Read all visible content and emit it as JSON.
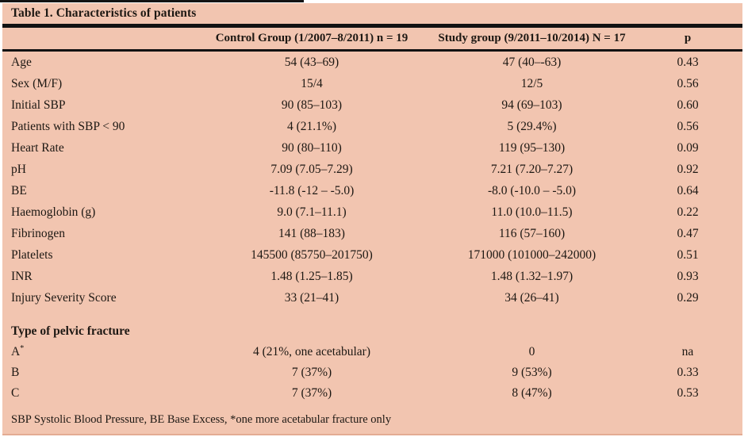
{
  "colors": {
    "table_background": "#f2c5b0",
    "rule": "#121212",
    "text": "#1d1813",
    "page_background": "#ffffff"
  },
  "table": {
    "title": "Table 1. Characteristics of patients",
    "header": {
      "label": "",
      "control": "Control Group (1/2007–8/2011) n = 19",
      "study": "Study group (9/2011–10/2014) N = 17",
      "p": "p"
    },
    "rows": [
      {
        "label": "Age",
        "control": "54 (43–69)",
        "study": "47 (40–-63)",
        "p": "0.43"
      },
      {
        "label": "Sex (M/F)",
        "control": "15/4",
        "study": "12/5",
        "p": "0.56"
      },
      {
        "label": "Initial SBP",
        "control": "90 (85–103)",
        "study": "94 (69–103)",
        "p": "0.60"
      },
      {
        "label": "Patients with SBP < 90",
        "control": "4 (21.1%)",
        "study": "5 (29.4%)",
        "p": "0.56"
      },
      {
        "label": "Heart Rate",
        "control": "90 (80–110)",
        "study": "119 (95–130)",
        "p": "0.09"
      },
      {
        "label": "pH",
        "control": "7.09 (7.05–7.29)",
        "study": "7.21 (7.20–7.27)",
        "p": "0.92"
      },
      {
        "label": "BE",
        "control": "-11.8 (-12 – -5.0)",
        "study": "-8.0 (-10.0 – -5.0)",
        "p": "0.64"
      },
      {
        "label": "Haemoglobin (g)",
        "control": "9.0 (7.1–11.1)",
        "study": "11.0 (10.0–11.5)",
        "p": "0.22"
      },
      {
        "label": "Fibrinogen",
        "control": "141 (88–183)",
        "study": "116 (57–160)",
        "p": "0.47"
      },
      {
        "label": "Platelets",
        "control": "145500 (85750–201750)",
        "study": "171000 (101000–242000)",
        "p": "0.51"
      },
      {
        "label": "INR",
        "control": "1.48 (1.25–1.85)",
        "study": "1.48 (1.32–1.97)",
        "p": "0.93"
      },
      {
        "label": "Injury Severity Score",
        "control": "33 (21–41)",
        "study": "34 (26–41)",
        "p": "0.29"
      }
    ],
    "section": {
      "label": "Type of pelvic fracture",
      "rows": [
        {
          "label": "A",
          "label_sup": "*",
          "control": "4 (21%, one acetabular)",
          "study": "0",
          "p": "na"
        },
        {
          "label": "B",
          "label_sup": "",
          "control": "7 (37%)",
          "study": "9 (53%)",
          "p": "0.33"
        },
        {
          "label": "C",
          "label_sup": "",
          "control": "7 (37%)",
          "study": "8 (47%)",
          "p": "0.53"
        }
      ]
    },
    "footnote": "SBP Systolic Blood Pressure, BE Base Excess, *one more acetabular fracture only"
  }
}
